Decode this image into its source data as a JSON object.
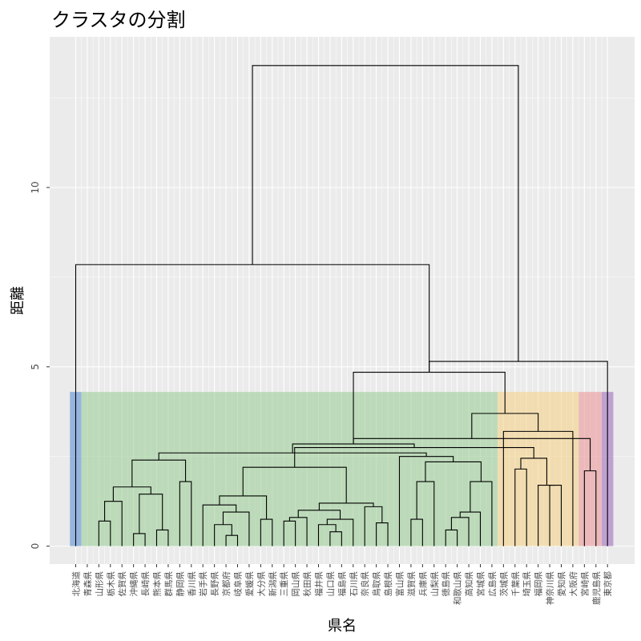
{
  "chart_data": {
    "type": "dendrogram",
    "title": "クラスタの分割",
    "xlabel": "県名",
    "ylabel": "距離",
    "ylim": [
      -0.5,
      14.2
    ],
    "yticks": [
      0,
      5,
      10
    ],
    "grid": true,
    "leaves": [
      "北海道",
      "青森県",
      "山形県",
      "栃木県",
      "佐賀県",
      "沖縄県",
      "長崎県",
      "熊本県",
      "群馬県",
      "静岡県",
      "香川県",
      "岩手県",
      "長野県",
      "京都府",
      "岐阜県",
      "愛媛県",
      "大分県",
      "新潟県",
      "三重県",
      "岡山県",
      "秋田県",
      "福井県",
      "山口県",
      "福島県",
      "石川県",
      "奈良県",
      "鳥取県",
      "島根県",
      "富山県",
      "滋賀県",
      "兵庫県",
      "山梨県",
      "徳島県",
      "和歌山県",
      "高知県",
      "宮城県",
      "広島県",
      "茨城県",
      "千葉県",
      "埼玉県",
      "福岡県",
      "神奈川県",
      "愛知県",
      "大阪府",
      "宮崎県",
      "鹿児島県",
      "東京都"
    ],
    "clusters": [
      {
        "start": 0,
        "end": 0,
        "color": "#5b8fd6"
      },
      {
        "start": 1,
        "end": 36,
        "color": "#9dcf98"
      },
      {
        "start": 37,
        "end": 43,
        "color": "#f5d28a"
      },
      {
        "start": 44,
        "end": 45,
        "color": "#ec9899"
      },
      {
        "start": 46,
        "end": 46,
        "color": "#a070c0"
      }
    ],
    "cluster_top": 4.3,
    "merges": [
      {
        "a": 13,
        "b": 14,
        "h": 0.3
      },
      {
        "a": 5,
        "b": 6,
        "h": 0.35
      },
      {
        "a": 22,
        "b": 23,
        "h": 0.4
      },
      {
        "a": 32,
        "b": 33,
        "h": 0.45
      },
      {
        "a": 7,
        "b": 8,
        "h": 0.45
      },
      {
        "a": 21,
        "b": -3,
        "h": 0.6
      },
      {
        "a": 12,
        "b": -1,
        "h": 0.6
      },
      {
        "a": 26,
        "b": 27,
        "h": 0.65
      },
      {
        "a": 2,
        "b": 3,
        "h": 0.7
      },
      {
        "a": 18,
        "b": 19,
        "h": 0.7
      },
      {
        "a": 16,
        "b": 17,
        "h": 0.75
      },
      {
        "a": 29,
        "b": 30,
        "h": 0.75
      },
      {
        "a": -6,
        "b": 24,
        "h": 0.75
      },
      {
        "a": 34,
        "b": -4,
        "h": 0.8
      },
      {
        "a": -10,
        "b": 20,
        "h": 0.8
      },
      {
        "a": 15,
        "b": -7,
        "h": 0.95
      },
      {
        "a": 35,
        "b": -14,
        "h": 0.95
      },
      {
        "a": -15,
        "b": -13,
        "h": 1.0
      },
      {
        "a": 25,
        "b": -8,
        "h": 1.1
      },
      {
        "a": 11,
        "b": -16,
        "h": 1.15
      },
      {
        "a": -19,
        "b": -18,
        "h": 1.2
      },
      {
        "a": -9,
        "b": 4,
        "h": 1.25
      },
      {
        "a": -20,
        "b": -11,
        "h": 1.4
      },
      {
        "a": -2,
        "b": -5,
        "h": 1.45
      },
      {
        "a": -22,
        "b": -24,
        "h": 1.65
      },
      {
        "a": 41,
        "b": 42,
        "h": 1.7
      },
      {
        "a": 40,
        "b": -26,
        "h": 1.7
      },
      {
        "a": 9,
        "b": 10,
        "h": 1.8
      },
      {
        "a": 36,
        "b": -17,
        "h": 1.8
      },
      {
        "a": 31,
        "b": -12,
        "h": 1.8
      },
      {
        "a": 44,
        "b": 45,
        "h": 2.1
      },
      {
        "a": 38,
        "b": 39,
        "h": 2.15
      },
      {
        "a": -23,
        "b": -21,
        "h": 2.2
      },
      {
        "a": -29,
        "b": -30,
        "h": 2.35
      },
      {
        "a": -25,
        "b": -28,
        "h": 2.4
      },
      {
        "a": -32,
        "b": -27,
        "h": 2.45
      },
      {
        "a": 28,
        "b": -34,
        "h": 2.5
      },
      {
        "a": -35,
        "b": -37,
        "h": 2.6
      },
      {
        "a": -36,
        "b": -33,
        "h": 2.75
      },
      {
        "a": -38,
        "b": -39,
        "h": 2.85
      },
      {
        "a": -40,
        "b": -31,
        "h": 3.0
      },
      {
        "a": 43,
        "b": 37,
        "h": 3.2
      },
      {
        "a": -41,
        "b": -42,
        "h": 3.7
      },
      {
        "a": -43,
        "b": -40,
        "h": 4.85
      },
      {
        "a": -44,
        "b": 46,
        "h": 5.15
      },
      {
        "a": 0,
        "b": -44,
        "h": 7.85
      },
      {
        "a": -46,
        "b": -45,
        "h": 13.4
      }
    ]
  }
}
